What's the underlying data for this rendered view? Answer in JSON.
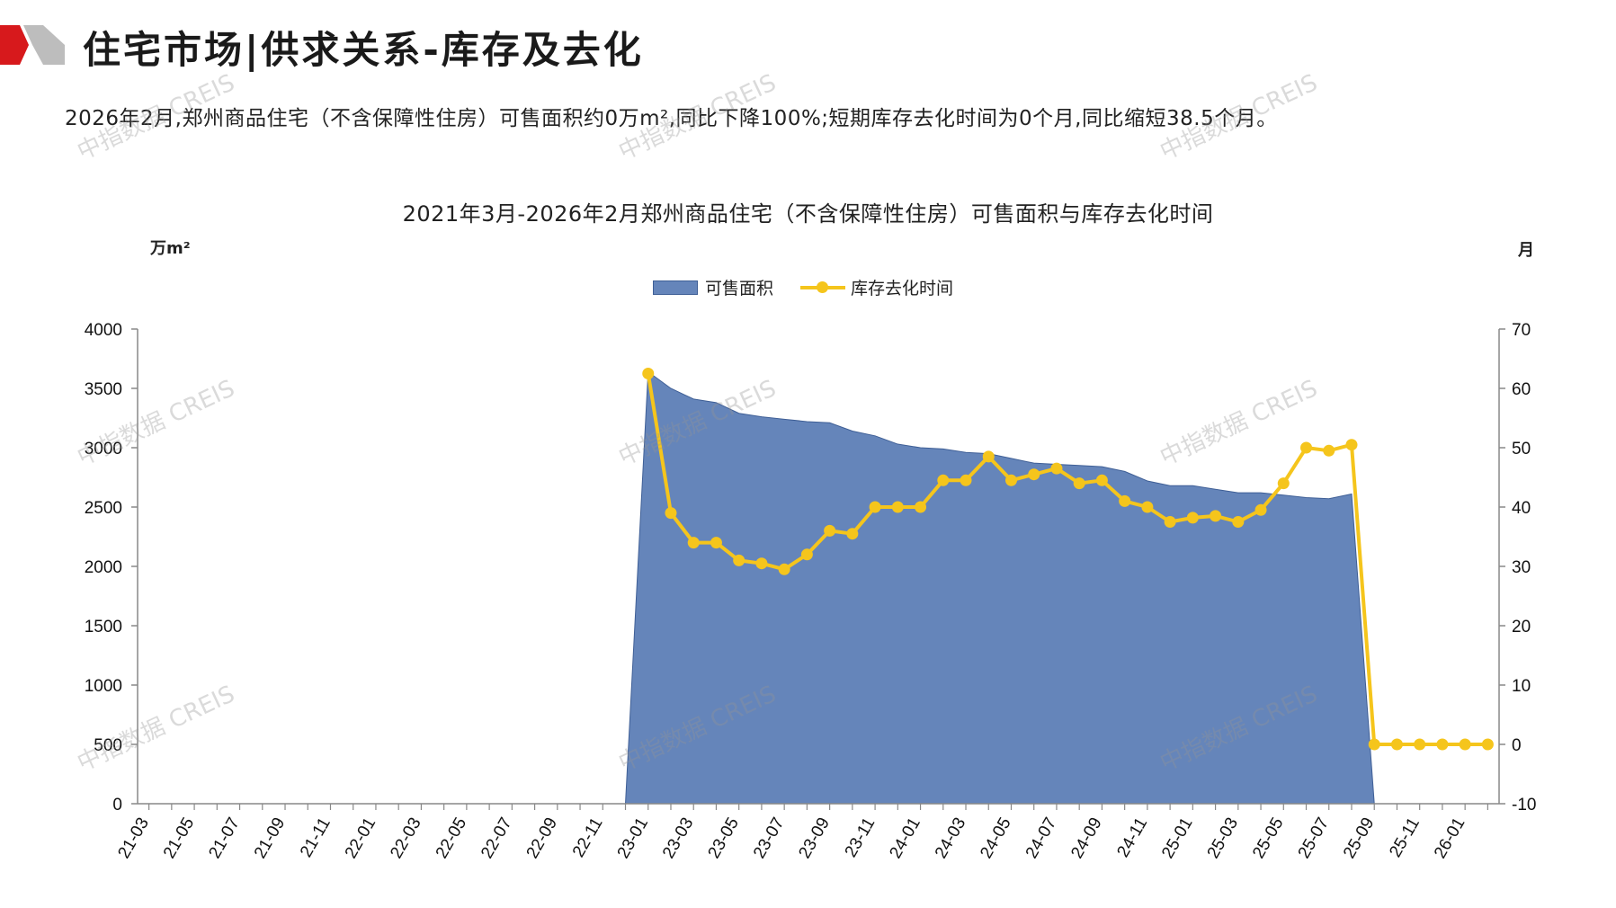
{
  "header": {
    "title": "住宅市场|供求关系-库存及去化",
    "summary": "2026年2月,郑州商品住宅（不含保障性住房）可售面积约0万m²,同比下降100%;短期库存去化时间为0个月,同比缩短38.5个月。"
  },
  "watermark": "中指数据 CREIS",
  "colors": {
    "area": "#6585BA",
    "area_edge": "#3F5F96",
    "line": "#F5C51C",
    "axis": "#888888",
    "logo_red": "#D7191C",
    "logo_gray": "#BDBDBD"
  },
  "chart_data": {
    "type": "area+line",
    "title": "2021年3月-2026年2月郑州商品住宅（不含保障性住房）可售面积与库存去化时间",
    "ylabel_left": "万m²",
    "ylabel_right": "月",
    "ylim_left": [
      0,
      4000
    ],
    "yticks_left": [
      0,
      500,
      1000,
      1500,
      2000,
      2500,
      3000,
      3500,
      4000
    ],
    "ylim_right": [
      -10,
      70
    ],
    "yticks_right": [
      -10,
      0,
      10,
      20,
      30,
      40,
      50,
      60,
      70
    ],
    "legend_position": "top-center",
    "x_tick_labels": [
      "21-03",
      "21-05",
      "21-07",
      "21-09",
      "21-11",
      "22-01",
      "22-03",
      "22-05",
      "22-07",
      "22-09",
      "22-11",
      "23-01",
      "23-03",
      "23-05",
      "23-07",
      "23-09",
      "23-11",
      "24-01",
      "24-03",
      "24-05",
      "24-07",
      "24-09",
      "24-11",
      "25-01",
      "25-03",
      "25-05",
      "25-07",
      "25-09",
      "25-11",
      "26-01"
    ],
    "x": [
      "21-03",
      "21-04",
      "21-05",
      "21-06",
      "21-07",
      "21-08",
      "21-09",
      "21-10",
      "21-11",
      "21-12",
      "22-01",
      "22-02",
      "22-03",
      "22-04",
      "22-05",
      "22-06",
      "22-07",
      "22-08",
      "22-09",
      "22-10",
      "22-11",
      "22-12",
      "23-01",
      "23-02",
      "23-03",
      "23-04",
      "23-05",
      "23-06",
      "23-07",
      "23-08",
      "23-09",
      "23-10",
      "23-11",
      "23-12",
      "24-01",
      "24-02",
      "24-03",
      "24-04",
      "24-05",
      "24-06",
      "24-07",
      "24-08",
      "24-09",
      "24-10",
      "24-11",
      "24-12",
      "25-01",
      "25-02",
      "25-03",
      "25-04",
      "25-05",
      "25-06",
      "25-07",
      "25-08",
      "25-09",
      "25-10",
      "25-11",
      "25-12",
      "26-01",
      "26-02"
    ],
    "series": [
      {
        "name": "可售面积",
        "type": "area",
        "axis": "left",
        "values": [
          0,
          0,
          0,
          0,
          0,
          0,
          0,
          0,
          0,
          0,
          0,
          0,
          0,
          0,
          0,
          0,
          0,
          0,
          0,
          0,
          0,
          0,
          3640,
          3500,
          3410,
          3380,
          3290,
          3260,
          3240,
          3220,
          3210,
          3140,
          3100,
          3030,
          3000,
          2990,
          2960,
          2950,
          2910,
          2870,
          2860,
          2850,
          2840,
          2800,
          2720,
          2680,
          2680,
          2650,
          2620,
          2620,
          2600,
          2580,
          2570,
          2610,
          0,
          0,
          0,
          0,
          0,
          0
        ]
      },
      {
        "name": "库存去化时间",
        "type": "line",
        "axis": "right",
        "values": [
          null,
          null,
          null,
          null,
          null,
          null,
          null,
          null,
          null,
          null,
          null,
          null,
          null,
          null,
          null,
          null,
          null,
          null,
          null,
          null,
          null,
          null,
          62.5,
          39,
          34,
          34,
          31,
          30.5,
          29.5,
          32,
          36,
          35.5,
          40,
          40,
          40,
          44.5,
          44.5,
          48.5,
          44.5,
          45.5,
          46.5,
          44,
          44.5,
          41,
          40,
          37.5,
          38.2,
          38.5,
          37.5,
          39.5,
          44,
          50,
          49.5,
          50.5,
          0,
          0,
          0,
          0,
          0,
          0
        ]
      }
    ]
  }
}
